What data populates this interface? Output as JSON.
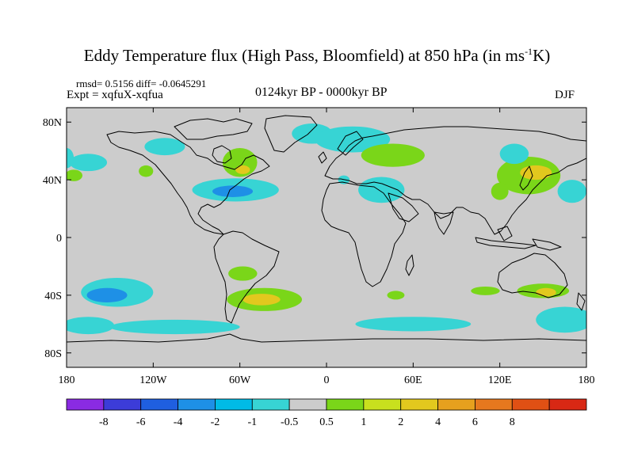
{
  "title": {
    "main": "Eddy Temperature flux (High Pass, Bloomfield) at 850 hPa (in ms",
    "sup": "-1",
    "tail": "K)"
  },
  "stats": "rmsd= 0.5156 diff= -0.0645291",
  "expt": "Expt = xqfuX-xqfua",
  "period": "0124kyr BP - 0000kyr BP",
  "season": "DJF",
  "axes": {
    "x_ticks": [
      {
        "value": -180,
        "label": "180"
      },
      {
        "value": -120,
        "label": "120W"
      },
      {
        "value": -60,
        "label": "60W"
      },
      {
        "value": 0,
        "label": "0"
      },
      {
        "value": 60,
        "label": "60E"
      },
      {
        "value": 120,
        "label": "120E"
      },
      {
        "value": 180,
        "label": "180"
      }
    ],
    "y_ticks": [
      {
        "value": 80,
        "label": "80N"
      },
      {
        "value": 40,
        "label": "40N"
      },
      {
        "value": 0,
        "label": "0"
      },
      {
        "value": -40,
        "label": "40S"
      },
      {
        "value": -80,
        "label": "80S"
      }
    ],
    "lon_range": [
      -180,
      180
    ],
    "lat_range": [
      -90,
      90
    ]
  },
  "colorbar": {
    "colors": [
      "#8a2be2",
      "#3c3cd8",
      "#1f5fe0",
      "#1e90e6",
      "#00bbe6",
      "#37d4d4",
      "#cccccc",
      "#7ad619",
      "#c8e01e",
      "#e2c81e",
      "#e6a01e",
      "#e6781e",
      "#e05014",
      "#d82814"
    ],
    "labels": [
      "-8",
      "-6",
      "-4",
      "-2",
      "-1",
      "-0.5",
      "0.5",
      "1",
      "2",
      "4",
      "6",
      "8"
    ]
  },
  "colors": {
    "background": "#cccccc",
    "land_outline": "#000000"
  },
  "anomaly_regions": [
    {
      "lon": -10,
      "lat": 72,
      "rlon": 14,
      "rlat": 7,
      "color": "#37d4d4"
    },
    {
      "lon": 18,
      "lat": 68,
      "rlon": 26,
      "rlat": 9,
      "color": "#37d4d4"
    },
    {
      "lon": -112,
      "lat": 63,
      "rlon": 14,
      "rlat": 6,
      "color": "#37d4d4"
    },
    {
      "lon": -60,
      "lat": 52,
      "rlon": 12,
      "rlat": 10,
      "color": "#7ad619"
    },
    {
      "lon": -58,
      "lat": 47,
      "rlon": 5,
      "rlat": 3,
      "color": "#e2c81e"
    },
    {
      "lon": -63,
      "lat": 33,
      "rlon": 30,
      "rlat": 8,
      "color": "#37d4d4"
    },
    {
      "lon": -65,
      "lat": 32,
      "rlon": 14,
      "rlat": 4,
      "color": "#1e90e6"
    },
    {
      "lon": -165,
      "lat": 52,
      "rlon": 13,
      "rlat": 6,
      "color": "#37d4d4"
    },
    {
      "lon": -175,
      "lat": 43,
      "rlon": 6,
      "rlat": 4,
      "color": "#7ad619"
    },
    {
      "lon": -125,
      "lat": 46,
      "rlon": 5,
      "rlat": 4,
      "color": "#7ad619"
    },
    {
      "lon": 46,
      "lat": 57,
      "rlon": 15,
      "rlat": 6,
      "color": "#e2c81e"
    },
    {
      "lon": 46,
      "lat": 57,
      "rlon": 22,
      "rlat": 8,
      "color": "#7ad619"
    },
    {
      "lon": 12,
      "lat": 40,
      "rlon": 4,
      "rlat": 3,
      "color": "#37d4d4"
    },
    {
      "lon": 38,
      "lat": 33,
      "rlon": 16,
      "rlat": 9,
      "color": "#37d4d4"
    },
    {
      "lon": 140,
      "lat": 43,
      "rlon": 22,
      "rlat": 13,
      "color": "#7ad619"
    },
    {
      "lon": 145,
      "lat": 45,
      "rlon": 11,
      "rlat": 5,
      "color": "#e2c81e"
    },
    {
      "lon": 120,
      "lat": 32,
      "rlon": 6,
      "rlat": 6,
      "color": "#7ad619"
    },
    {
      "lon": 130,
      "lat": 58,
      "rlon": 10,
      "rlat": 7,
      "color": "#37d4d4"
    },
    {
      "lon": 170,
      "lat": 32,
      "rlon": 10,
      "rlat": 8,
      "color": "#37d4d4"
    },
    {
      "lon": -180,
      "lat": 55,
      "rlon": 5,
      "rlat": 7,
      "color": "#37d4d4"
    },
    {
      "lon": -145,
      "lat": -38,
      "rlon": 25,
      "rlat": 10,
      "color": "#37d4d4"
    },
    {
      "lon": -152,
      "lat": -40,
      "rlon": 14,
      "rlat": 5,
      "color": "#1e90e6"
    },
    {
      "lon": -58,
      "lat": -25,
      "rlon": 10,
      "rlat": 5,
      "color": "#7ad619"
    },
    {
      "lon": -43,
      "lat": -43,
      "rlon": 26,
      "rlat": 8,
      "color": "#7ad619"
    },
    {
      "lon": -45,
      "lat": -43,
      "rlon": 13,
      "rlat": 4,
      "color": "#e2c81e"
    },
    {
      "lon": -105,
      "lat": -62,
      "rlon": 45,
      "rlat": 5,
      "color": "#37d4d4"
    },
    {
      "lon": -165,
      "lat": -61,
      "rlon": 18,
      "rlat": 6,
      "color": "#37d4d4"
    },
    {
      "lon": 60,
      "lat": -60,
      "rlon": 40,
      "rlat": 5,
      "color": "#37d4d4"
    },
    {
      "lon": 110,
      "lat": -37,
      "rlon": 10,
      "rlat": 3,
      "color": "#7ad619"
    },
    {
      "lon": 150,
      "lat": -37,
      "rlon": 18,
      "rlat": 5,
      "color": "#7ad619"
    },
    {
      "lon": 152,
      "lat": -38,
      "rlon": 7,
      "rlat": 3,
      "color": "#e2c81e"
    },
    {
      "lon": 165,
      "lat": -57,
      "rlon": 20,
      "rlat": 9,
      "color": "#37d4d4"
    },
    {
      "lon": 48,
      "lat": -40,
      "rlon": 6,
      "rlat": 3,
      "color": "#7ad619"
    }
  ]
}
